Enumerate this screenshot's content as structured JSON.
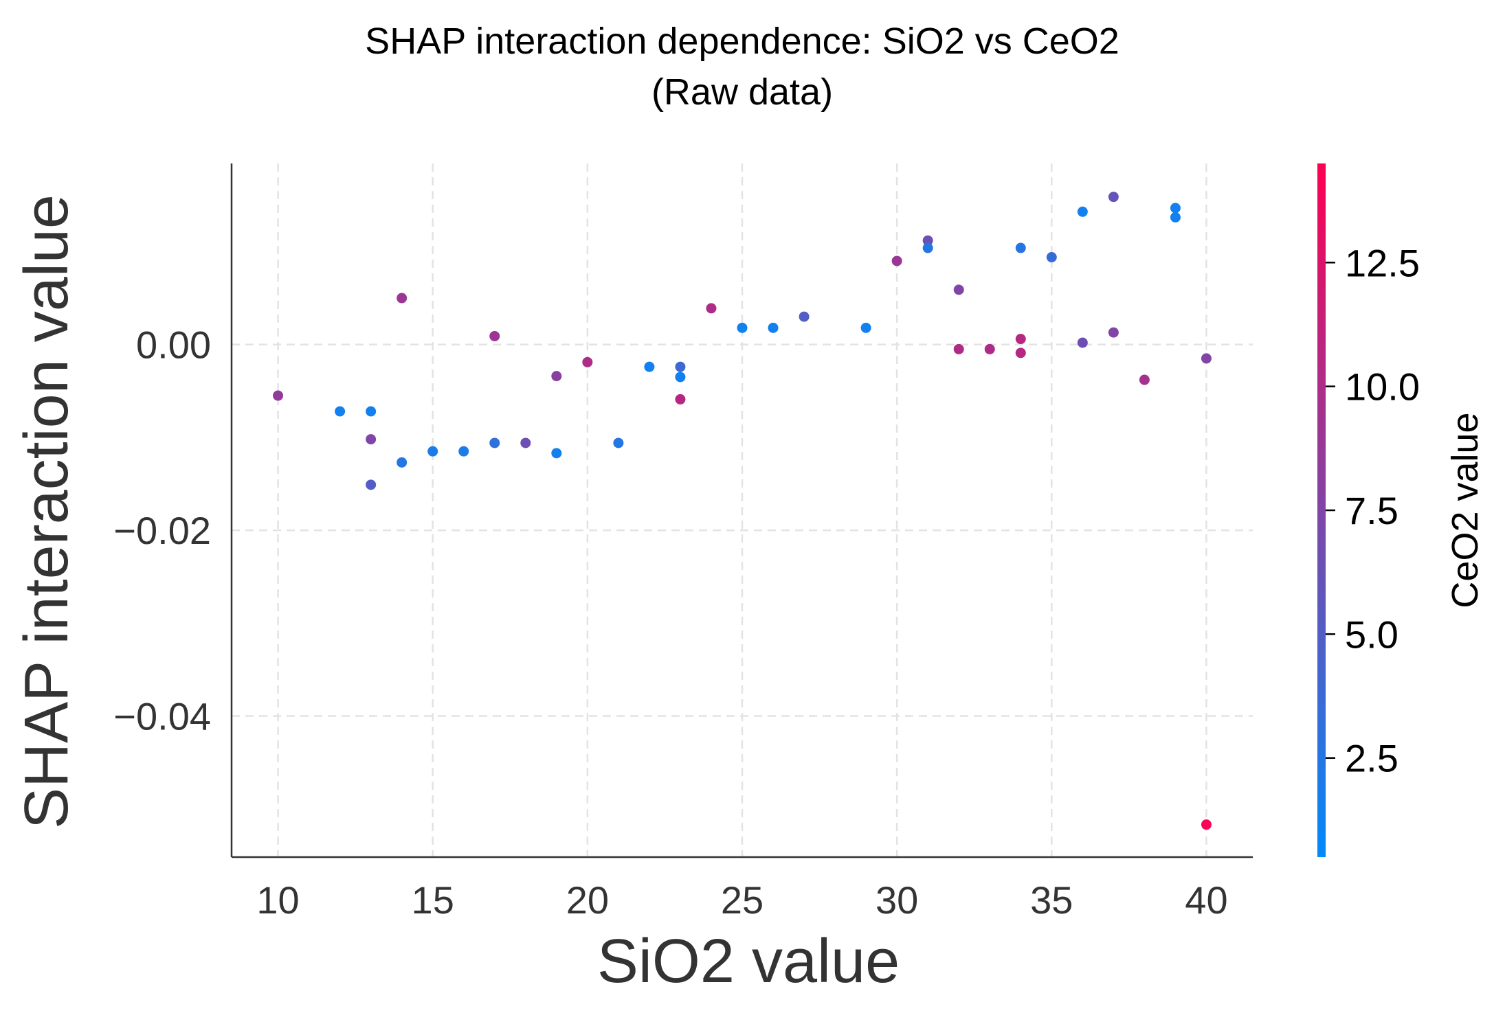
{
  "chart_data": {
    "type": "scatter",
    "title": "SHAP interaction dependence: SiO2 vs CeO2",
    "subtitle": "(Raw data)",
    "xlabel": "SiO2 value",
    "ylabel": "SHAP interaction value",
    "colorbar_label": "CeO2 value",
    "xlim": [
      8.5,
      41.5
    ],
    "ylim": [
      -0.0552,
      0.0195
    ],
    "xticks": [
      10,
      15,
      20,
      25,
      30,
      35,
      40
    ],
    "xtick_labels": [
      "10",
      "15",
      "20",
      "25",
      "30",
      "35",
      "40"
    ],
    "yticks": [
      0.0,
      -0.02,
      -0.04
    ],
    "ytick_labels": [
      "0.00",
      "−0.02",
      "−0.04"
    ],
    "color_range": [
      0.5,
      14.5
    ],
    "colorbar_ticks": [
      2.5,
      5.0,
      7.5,
      10.0,
      12.5
    ],
    "colorbar_tick_labels": [
      "2.5",
      "5.0",
      "7.5",
      "10.0",
      "12.5"
    ],
    "colormap": [
      "#008afb",
      "#ff0052"
    ],
    "grid": true,
    "points": [
      {
        "x": 10,
        "y": -0.0055,
        "c": 8.5
      },
      {
        "x": 12,
        "y": -0.0072,
        "c": 1.5
      },
      {
        "x": 13,
        "y": -0.0072,
        "c": 1.5
      },
      {
        "x": 13,
        "y": -0.0102,
        "c": 7.5
      },
      {
        "x": 13,
        "y": -0.0151,
        "c": 5.0
      },
      {
        "x": 14,
        "y": -0.0127,
        "c": 2.5
      },
      {
        "x": 14,
        "y": 0.005,
        "c": 9.0
      },
      {
        "x": 15,
        "y": -0.0115,
        "c": 2.0
      },
      {
        "x": 16,
        "y": -0.0115,
        "c": 2.0
      },
      {
        "x": 17,
        "y": -0.0106,
        "c": 3.0
      },
      {
        "x": 17,
        "y": 0.0009,
        "c": 9.0
      },
      {
        "x": 18,
        "y": -0.0106,
        "c": 6.5
      },
      {
        "x": 19,
        "y": -0.0117,
        "c": 1.5
      },
      {
        "x": 19,
        "y": -0.0034,
        "c": 8.0
      },
      {
        "x": 20,
        "y": -0.0019,
        "c": 10.0
      },
      {
        "x": 21,
        "y": -0.0106,
        "c": 2.5
      },
      {
        "x": 22,
        "y": -0.0024,
        "c": 1.5
      },
      {
        "x": 23,
        "y": -0.0024,
        "c": 4.0
      },
      {
        "x": 23,
        "y": -0.0035,
        "c": 1.5
      },
      {
        "x": 23,
        "y": -0.0059,
        "c": 10.5
      },
      {
        "x": 24,
        "y": 0.0039,
        "c": 10.0
      },
      {
        "x": 25,
        "y": 0.0018,
        "c": 1.5
      },
      {
        "x": 26,
        "y": 0.0018,
        "c": 1.5
      },
      {
        "x": 27,
        "y": 0.003,
        "c": 5.0
      },
      {
        "x": 29,
        "y": 0.0018,
        "c": 1.5
      },
      {
        "x": 30,
        "y": 0.009,
        "c": 9.0
      },
      {
        "x": 31,
        "y": 0.0112,
        "c": 6.5
      },
      {
        "x": 31,
        "y": 0.0104,
        "c": 2.5
      },
      {
        "x": 32,
        "y": 0.0059,
        "c": 7.5
      },
      {
        "x": 32,
        "y": -0.0005,
        "c": 10.0
      },
      {
        "x": 33,
        "y": -0.0005,
        "c": 10.0
      },
      {
        "x": 34,
        "y": 0.0104,
        "c": 2.5
      },
      {
        "x": 34,
        "y": 0.0006,
        "c": 10.5
      },
      {
        "x": 34,
        "y": -0.0009,
        "c": 10.5
      },
      {
        "x": 35,
        "y": 0.0094,
        "c": 3.5
      },
      {
        "x": 36,
        "y": 0.0143,
        "c": 1.5
      },
      {
        "x": 36,
        "y": 0.0002,
        "c": 6.5
      },
      {
        "x": 37,
        "y": 0.0159,
        "c": 6.0
      },
      {
        "x": 37,
        "y": 0.0013,
        "c": 7.5
      },
      {
        "x": 38,
        "y": -0.0038,
        "c": 9.5
      },
      {
        "x": 39,
        "y": 0.0147,
        "c": 1.5
      },
      {
        "x": 39,
        "y": 0.0137,
        "c": 1.5
      },
      {
        "x": 40,
        "y": -0.0015,
        "c": 7.5
      },
      {
        "x": 40,
        "y": -0.0517,
        "c": 14.0
      }
    ]
  }
}
